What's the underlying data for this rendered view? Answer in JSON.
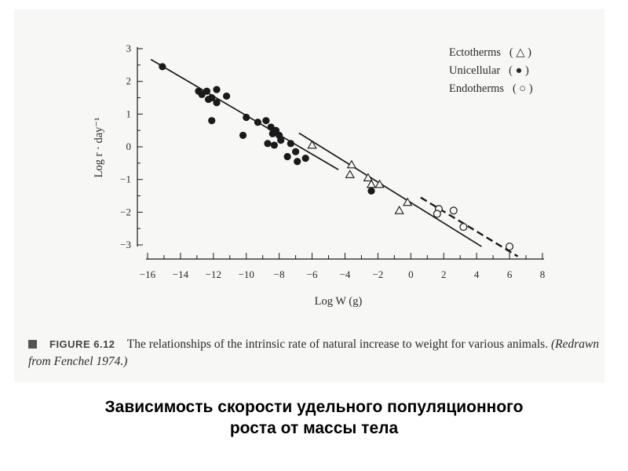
{
  "chart_data": {
    "type": "scatter",
    "xlabel": "Log W (g)",
    "ylabel": "Log r · day⁻¹",
    "xlim": [
      -16,
      8
    ],
    "ylim": [
      -3,
      3
    ],
    "xticks": [
      -16,
      -14,
      -12,
      -10,
      -8,
      -6,
      -4,
      -2,
      0,
      2,
      4,
      6,
      8
    ],
    "yticks": [
      3,
      2,
      1,
      0,
      -1,
      -2,
      -3
    ],
    "legend_position": "top-right",
    "grid": false,
    "series": [
      {
        "name": "Ectotherms",
        "symbol": "△",
        "marker": "triangle",
        "points": [
          [
            -6.0,
            0.05
          ],
          [
            -3.6,
            -0.55
          ],
          [
            -3.7,
            -0.85
          ],
          [
            -2.6,
            -0.95
          ],
          [
            -2.4,
            -1.15
          ],
          [
            -1.9,
            -1.15
          ],
          [
            -0.2,
            -1.7
          ],
          [
            -0.7,
            -1.95
          ]
        ]
      },
      {
        "name": "Unicellular",
        "symbol": "●",
        "marker": "filled-circle",
        "points": [
          [
            -15.1,
            2.45
          ],
          [
            -12.9,
            1.7
          ],
          [
            -12.7,
            1.6
          ],
          [
            -12.4,
            1.7
          ],
          [
            -12.3,
            1.45
          ],
          [
            -12.1,
            1.5
          ],
          [
            -11.8,
            1.75
          ],
          [
            -11.8,
            1.35
          ],
          [
            -11.2,
            1.55
          ],
          [
            -12.1,
            0.8
          ],
          [
            -10.0,
            0.9
          ],
          [
            -10.2,
            0.35
          ],
          [
            -9.3,
            0.75
          ],
          [
            -8.8,
            0.8
          ],
          [
            -8.5,
            0.6
          ],
          [
            -8.4,
            0.4
          ],
          [
            -8.2,
            0.5
          ],
          [
            -8.0,
            0.35
          ],
          [
            -7.9,
            0.2
          ],
          [
            -8.3,
            0.05
          ],
          [
            -8.7,
            0.1
          ],
          [
            -7.3,
            0.1
          ],
          [
            -7.0,
            -0.15
          ],
          [
            -7.5,
            -0.3
          ],
          [
            -6.9,
            -0.45
          ],
          [
            -6.4,
            -0.35
          ],
          [
            -2.4,
            -1.35
          ]
        ]
      },
      {
        "name": "Endotherms",
        "symbol": "○",
        "marker": "open-circle",
        "points": [
          [
            1.7,
            -1.9
          ],
          [
            2.6,
            -1.95
          ],
          [
            1.6,
            -2.05
          ],
          [
            3.2,
            -2.45
          ],
          [
            6.0,
            -3.05
          ]
        ]
      }
    ],
    "fit_lines": [
      {
        "name": "unicellular-fit",
        "style": "solid",
        "x": [
          -15.8,
          -4.4
        ],
        "y": [
          2.67,
          -0.7
        ]
      },
      {
        "name": "ectotherm-fit",
        "style": "solid",
        "x": [
          -6.8,
          4.3
        ],
        "y": [
          0.42,
          -3.05
        ]
      },
      {
        "name": "endotherm-fit",
        "style": "dashed",
        "x": [
          0.6,
          6.5
        ],
        "y": [
          -1.55,
          -3.35
        ]
      }
    ]
  },
  "legend": {
    "items": [
      {
        "label": "Ectotherms",
        "open": "(",
        "symbol": "△",
        "close": ")"
      },
      {
        "label": "Unicellular",
        "open": "(",
        "symbol": "●",
        "close": ")"
      },
      {
        "label": "Endotherms",
        "open": "(",
        "symbol": "○",
        "close": ")"
      }
    ]
  },
  "caption": {
    "figure_label": "FIGURE 6.12",
    "text": "The relationships of the intrinsic rate of natural increase to weight for various animals.",
    "credit": "(Redrawn from Fenchel 1974.)"
  },
  "slide": {
    "title_line1": "Зависимость скорости удельного популяционного",
    "title_line2": "роста от массы тела"
  },
  "colors": {
    "ink": "#1a1a1a",
    "paper": "#f7f7f5",
    "background": "#ffffff"
  }
}
